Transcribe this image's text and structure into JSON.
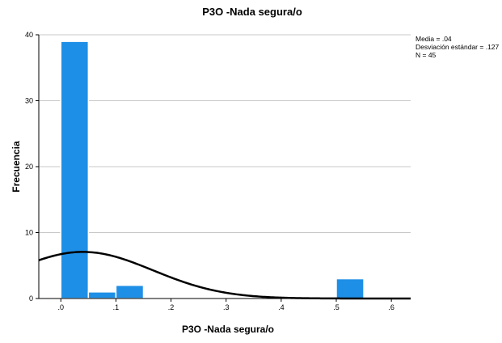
{
  "chart_data": {
    "type": "bar",
    "title": "P3O -Nada segura/o",
    "xlabel": "P3O -Nada segura/o",
    "ylabel": "Frecuencia",
    "xlim": [
      -0.04,
      0.635
    ],
    "ylim": [
      0,
      40
    ],
    "x_ticks": [
      0.0,
      0.1,
      0.2,
      0.3,
      0.4,
      0.5,
      0.6
    ],
    "x_tick_labels": [
      ".0",
      ".1",
      ".2",
      ".3",
      ".4",
      ".5",
      ".6"
    ],
    "y_ticks": [
      0,
      10,
      20,
      30,
      40
    ],
    "y_tick_labels": [
      "0",
      "10",
      "20",
      "30",
      "40"
    ],
    "bins": [
      {
        "start": 0.0,
        "end": 0.05,
        "count": 39
      },
      {
        "start": 0.05,
        "end": 0.1,
        "count": 1
      },
      {
        "start": 0.1,
        "end": 0.15,
        "count": 2
      },
      {
        "start": 0.5,
        "end": 0.55,
        "count": 3
      }
    ],
    "normal_curve": {
      "mean": 0.04,
      "sd": 0.127,
      "n": 45,
      "bin_width": 0.05
    },
    "stats": [
      "Media = .04",
      "Desviación estándar = .127",
      "N = 45"
    ],
    "grid": "horizontal",
    "colors": {
      "bar": "#1e8fe6",
      "bar_edge": "#ffffff",
      "curve": "#000000",
      "grid": "#c8c8c8"
    }
  }
}
